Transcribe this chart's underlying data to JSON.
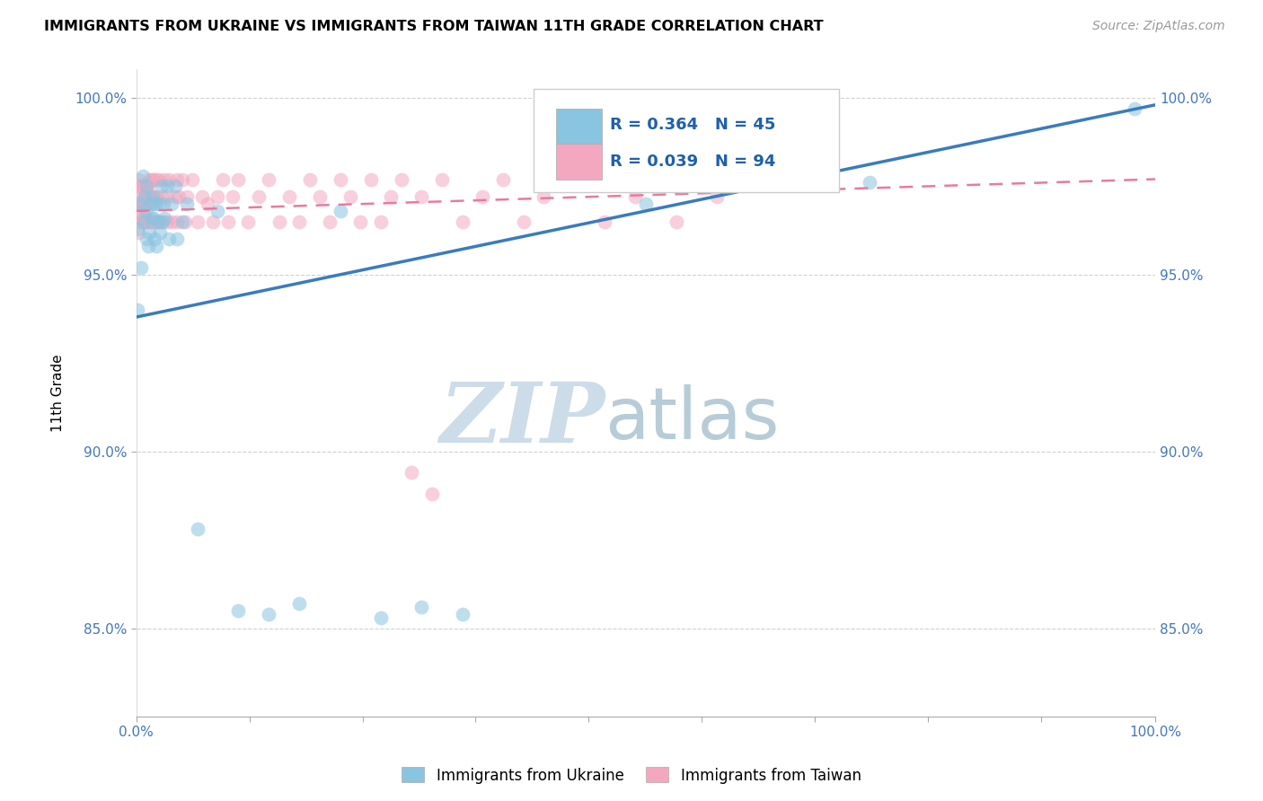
{
  "title": "IMMIGRANTS FROM UKRAINE VS IMMIGRANTS FROM TAIWAN 11TH GRADE CORRELATION CHART",
  "source": "Source: ZipAtlas.com",
  "ylabel": "11th Grade",
  "xlim": [
    0,
    1.0
  ],
  "ylim": [
    0.825,
    1.008
  ],
  "yticks": [
    0.85,
    0.9,
    0.95,
    1.0
  ],
  "ytick_labels": [
    "85.0%",
    "90.0%",
    "95.0%",
    "100.0%"
  ],
  "xticks": [
    0.0,
    0.111,
    0.222,
    0.333,
    0.444,
    0.555,
    0.666,
    0.777,
    0.888,
    1.0
  ],
  "legend_R_ukraine": "R = 0.364",
  "legend_N_ukraine": "N = 45",
  "legend_R_taiwan": "R = 0.039",
  "legend_N_taiwan": "N = 94",
  "legend_label_ukraine": "Immigrants from Ukraine",
  "legend_label_taiwan": "Immigrants from Taiwan",
  "color_ukraine": "#89c4e0",
  "color_taiwan": "#f4a8c0",
  "trendline_ukraine_color": "#3a7bbf",
  "trendline_taiwan_color": "#e87aa0",
  "watermark_zip": "ZIP",
  "watermark_atlas": "atlas",
  "watermark_color": "#ccdce8",
  "ukraine_scatter_x": [
    0.001,
    0.001,
    0.003,
    0.005,
    0.006,
    0.007,
    0.008,
    0.009,
    0.01,
    0.01,
    0.012,
    0.013,
    0.014,
    0.015,
    0.016,
    0.017,
    0.018,
    0.019,
    0.02,
    0.021,
    0.022,
    0.023,
    0.025,
    0.026,
    0.027,
    0.028,
    0.03,
    0.032,
    0.035,
    0.038,
    0.04,
    0.045,
    0.05,
    0.06,
    0.08,
    0.1,
    0.13,
    0.16,
    0.2,
    0.24,
    0.28,
    0.32,
    0.5,
    0.72,
    0.98
  ],
  "ukraine_scatter_y": [
    0.94,
    0.963,
    0.97,
    0.952,
    0.978,
    0.965,
    0.972,
    0.968,
    0.96,
    0.975,
    0.958,
    0.962,
    0.97,
    0.966,
    0.972,
    0.966,
    0.96,
    0.97,
    0.958,
    0.965,
    0.97,
    0.962,
    0.975,
    0.965,
    0.97,
    0.966,
    0.975,
    0.96,
    0.97,
    0.975,
    0.96,
    0.965,
    0.97,
    0.878,
    0.968,
    0.855,
    0.854,
    0.857,
    0.968,
    0.853,
    0.856,
    0.854,
    0.97,
    0.976,
    0.997
  ],
  "taiwan_scatter_x": [
    0.001,
    0.001,
    0.001,
    0.002,
    0.002,
    0.003,
    0.003,
    0.004,
    0.004,
    0.005,
    0.005,
    0.005,
    0.006,
    0.006,
    0.007,
    0.007,
    0.008,
    0.008,
    0.009,
    0.009,
    0.01,
    0.01,
    0.01,
    0.011,
    0.012,
    0.012,
    0.013,
    0.013,
    0.014,
    0.015,
    0.015,
    0.016,
    0.016,
    0.017,
    0.018,
    0.019,
    0.02,
    0.02,
    0.022,
    0.022,
    0.025,
    0.025,
    0.028,
    0.03,
    0.03,
    0.032,
    0.035,
    0.038,
    0.04,
    0.04,
    0.042,
    0.045,
    0.048,
    0.05,
    0.055,
    0.06,
    0.065,
    0.07,
    0.075,
    0.08,
    0.085,
    0.09,
    0.095,
    0.1,
    0.11,
    0.12,
    0.13,
    0.14,
    0.15,
    0.16,
    0.17,
    0.18,
    0.19,
    0.2,
    0.21,
    0.22,
    0.23,
    0.24,
    0.25,
    0.26,
    0.27,
    0.28,
    0.29,
    0.3,
    0.32,
    0.34,
    0.36,
    0.38,
    0.4,
    0.43,
    0.46,
    0.49,
    0.53,
    0.57
  ],
  "taiwan_scatter_y": [
    0.97,
    0.975,
    0.968,
    0.962,
    0.977,
    0.972,
    0.975,
    0.97,
    0.966,
    0.975,
    0.97,
    0.965,
    0.975,
    0.97,
    0.966,
    0.972,
    0.975,
    0.97,
    0.966,
    0.972,
    0.975,
    0.97,
    0.965,
    0.972,
    0.975,
    0.965,
    0.972,
    0.977,
    0.965,
    0.972,
    0.977,
    0.97,
    0.965,
    0.977,
    0.972,
    0.965,
    0.977,
    0.972,
    0.965,
    0.977,
    0.965,
    0.972,
    0.977,
    0.972,
    0.965,
    0.977,
    0.965,
    0.972,
    0.977,
    0.965,
    0.972,
    0.977,
    0.965,
    0.972,
    0.977,
    0.965,
    0.972,
    0.97,
    0.965,
    0.972,
    0.977,
    0.965,
    0.972,
    0.977,
    0.965,
    0.972,
    0.977,
    0.965,
    0.972,
    0.965,
    0.977,
    0.972,
    0.965,
    0.977,
    0.972,
    0.965,
    0.977,
    0.965,
    0.972,
    0.977,
    0.894,
    0.972,
    0.888,
    0.977,
    0.965,
    0.972,
    0.977,
    0.965,
    0.972,
    0.977,
    0.965,
    0.972,
    0.965,
    0.972
  ],
  "ukraine_trend": [
    0.0,
    1.0,
    0.938,
    0.998
  ],
  "taiwan_trend": [
    0.0,
    1.0,
    0.968,
    0.977
  ]
}
